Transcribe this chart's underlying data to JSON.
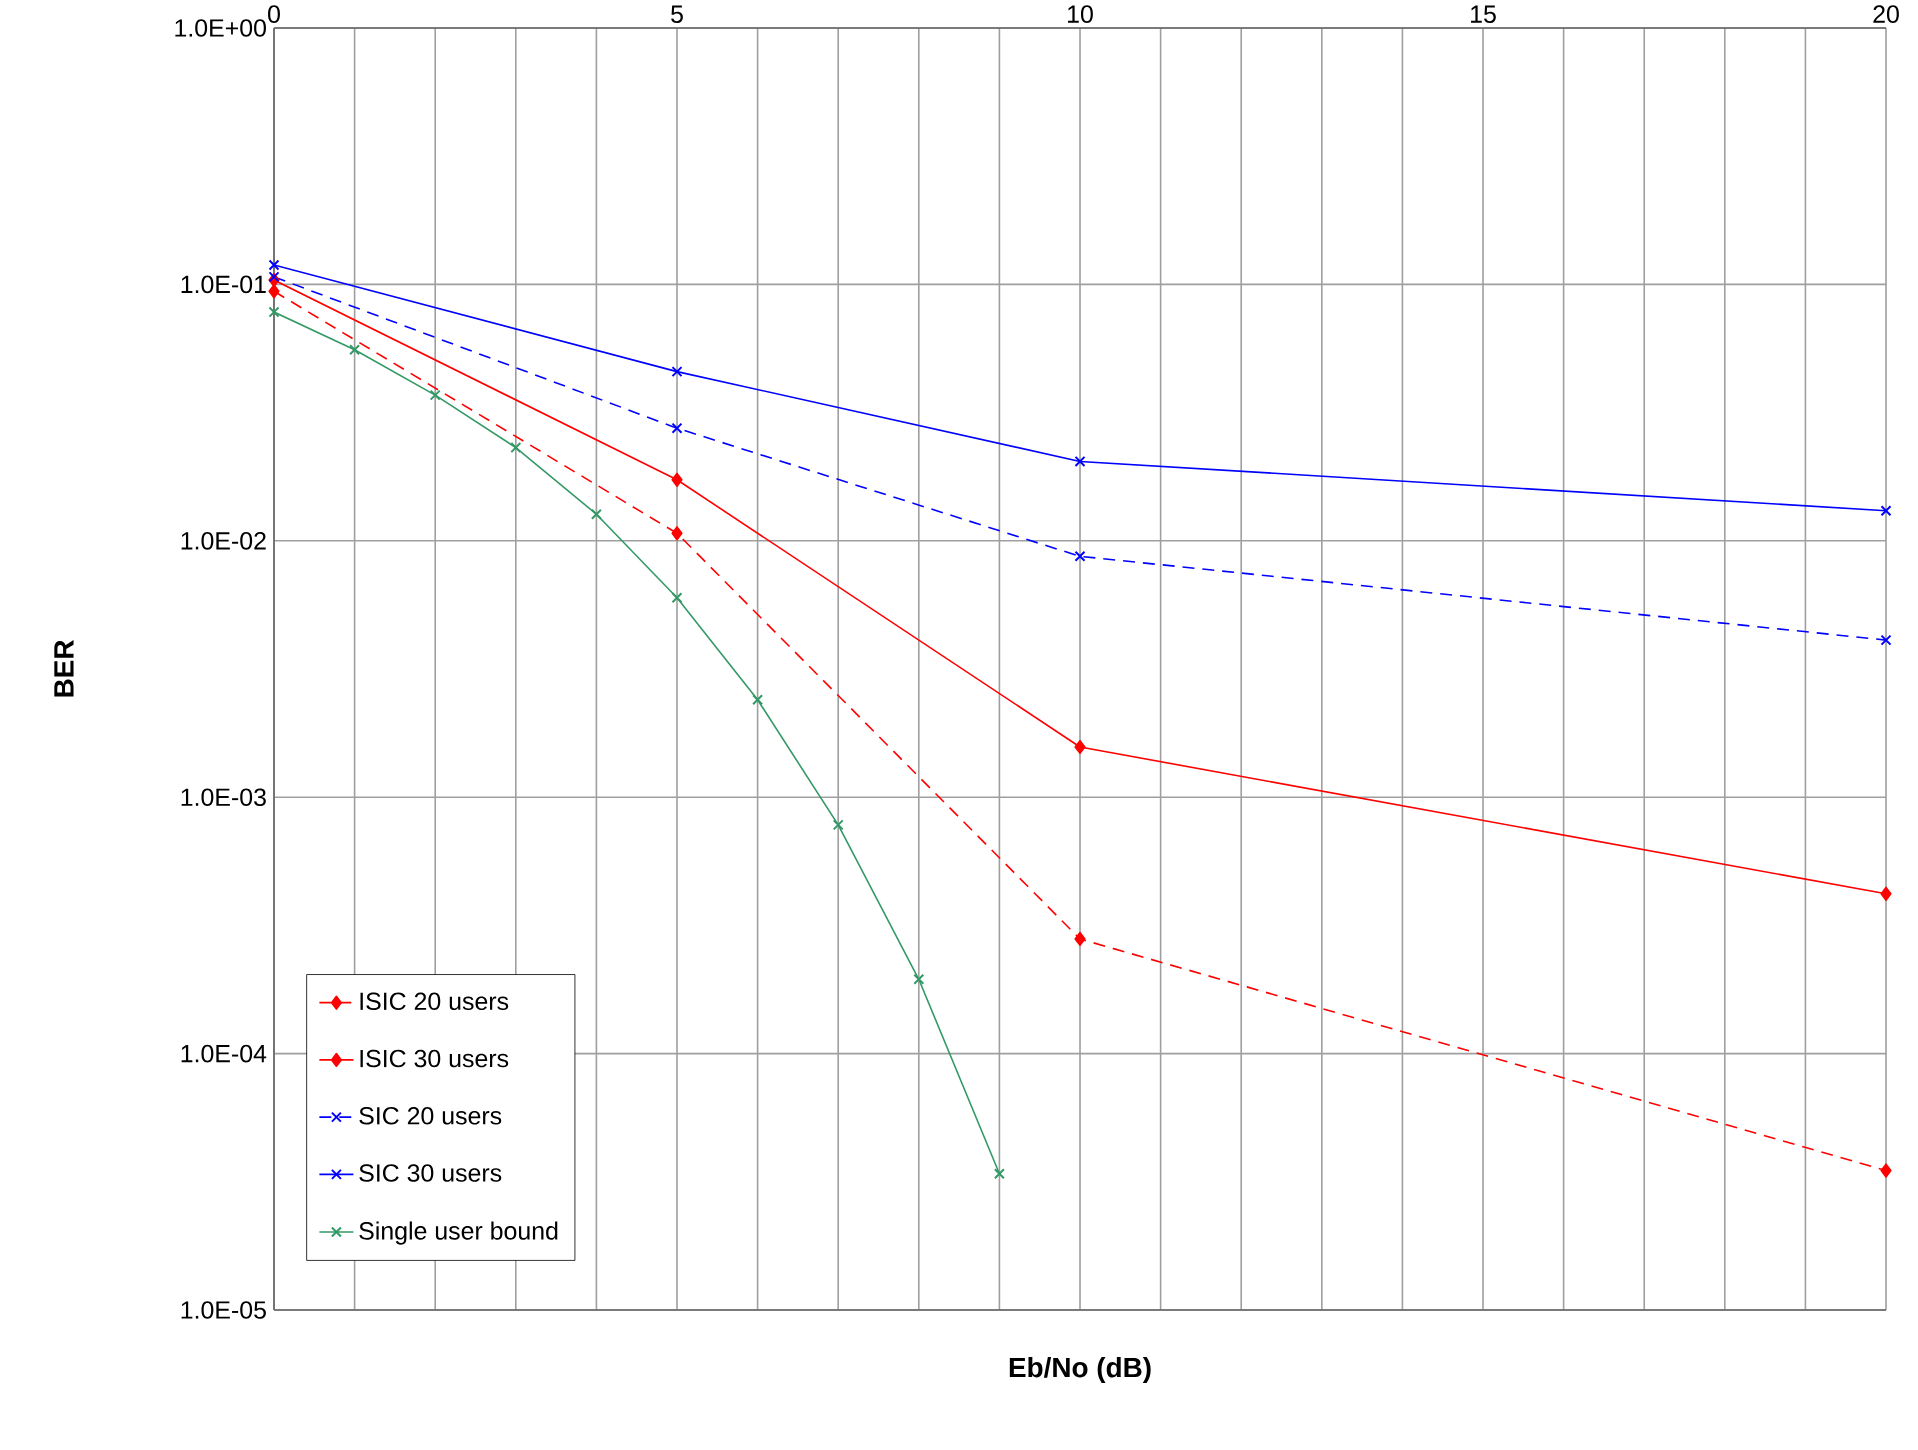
{
  "chart_data": {
    "type": "line",
    "xlabel": "Eb/No (dB)",
    "ylabel": "BER",
    "log": "y",
    "xlim": [
      0,
      20
    ],
    "ylim": [
      1e-05,
      1
    ],
    "xticks": [
      0,
      {
        "value": 1,
        "label": null
      },
      {
        "value": 2,
        "label": null
      },
      {
        "value": 3,
        "label": null
      },
      {
        "value": 4,
        "label": null
      },
      5,
      {
        "value": 6,
        "label": null
      },
      {
        "value": 7,
        "label": null
      },
      {
        "value": 8,
        "label": null
      },
      {
        "value": 9,
        "label": null
      },
      10,
      {
        "value": 11,
        "label": null
      },
      {
        "value": 12,
        "label": null
      },
      {
        "value": 13,
        "label": null
      },
      {
        "value": 14,
        "label": null
      },
      15,
      {
        "value": 16,
        "label": null
      },
      {
        "value": 17,
        "label": null
      },
      {
        "value": 18,
        "label": null
      },
      {
        "value": 19,
        "label": null
      },
      20
    ],
    "yticks": [
      {
        "value": 1e-05,
        "label": "1.0E-05"
      },
      {
        "value": 0.0001,
        "label": "1.0E-04"
      },
      {
        "value": 0.001,
        "label": "1.0E-03"
      },
      {
        "value": 0.01,
        "label": "1.0E-02"
      },
      {
        "value": 0.1,
        "label": "1.0E-01"
      },
      {
        "value": 1,
        "label": "1.0E+00"
      }
    ],
    "grid": true,
    "legend": "bottom left",
    "series": [
      {
        "name": "ISIC 20 users",
        "color": "#ff0000",
        "line_style": "dashed",
        "marker": "diamond",
        "x": [
          0,
          5,
          10,
          20
        ],
        "values": [
          0.094,
          0.0107,
          0.00028,
          3.5e-05
        ]
      },
      {
        "name": "ISIC 30 users",
        "color": "#ff0000",
        "line_style": "solid",
        "marker": "diamond",
        "x": [
          0,
          5,
          10,
          20
        ],
        "values": [
          0.104,
          0.0173,
          0.00157,
          0.00042
        ]
      },
      {
        "name": "SIC 20 users",
        "color": "#0000ff",
        "line_style": "dashed",
        "marker": "cross",
        "x": [
          0,
          5,
          10,
          20
        ],
        "values": [
          0.107,
          0.0275,
          0.0087,
          0.0041
        ]
      },
      {
        "name": "SIC 30 users",
        "color": "#0000ff",
        "line_style": "solid",
        "marker": "cross",
        "x": [
          0,
          5,
          10,
          20
        ],
        "values": [
          0.119,
          0.0457,
          0.0204,
          0.0131
        ]
      },
      {
        "name": "Single user bound",
        "color": "#339966",
        "line_style": "solid",
        "marker": "cross",
        "x": [
          0,
          1,
          2,
          3,
          4,
          5,
          6,
          7,
          8,
          9
        ],
        "values": [
          0.078,
          0.0556,
          0.037,
          0.0231,
          0.0127,
          0.006,
          0.0024,
          0.00078,
          0.000195,
          3.4e-05
        ]
      }
    ]
  }
}
